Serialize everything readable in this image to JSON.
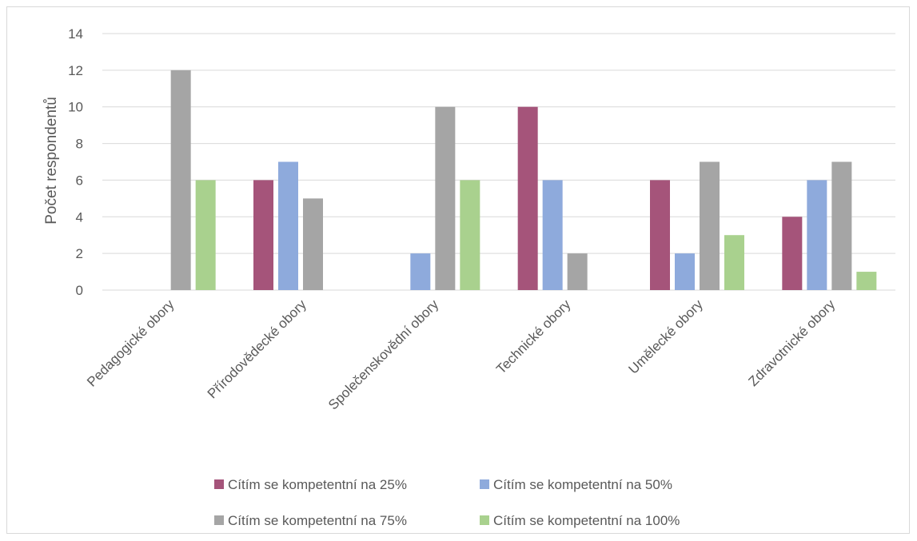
{
  "chart_data": {
    "type": "bar",
    "title": "",
    "xlabel": "",
    "ylabel": "Počet respondentů",
    "ylim": [
      0,
      14
    ],
    "yticks": [
      0,
      2,
      4,
      6,
      8,
      10,
      12,
      14
    ],
    "grid": true,
    "legend_position": "bottom",
    "categories": [
      "Pedagogické obory",
      "Přírodovědecké obory",
      "Společenskovědní obory",
      "Technické obory",
      "Umělecké obory",
      "Zdravotnické obory"
    ],
    "series": [
      {
        "name": "Cítím se kompetentní na 25%",
        "color": "#a5547a",
        "values": [
          0,
          6,
          0,
          10,
          6,
          4
        ]
      },
      {
        "name": "Cítím se kompetentní na 50%",
        "color": "#8eaadc",
        "values": [
          0,
          7,
          2,
          6,
          2,
          6
        ]
      },
      {
        "name": "Cítím se kompetentní na 75%",
        "color": "#a5a5a5",
        "values": [
          12,
          5,
          10,
          2,
          7,
          7
        ]
      },
      {
        "name": "Cítím se kompetentní na 100%",
        "color": "#a9d18e",
        "values": [
          6,
          0,
          6,
          0,
          3,
          1
        ]
      }
    ]
  }
}
